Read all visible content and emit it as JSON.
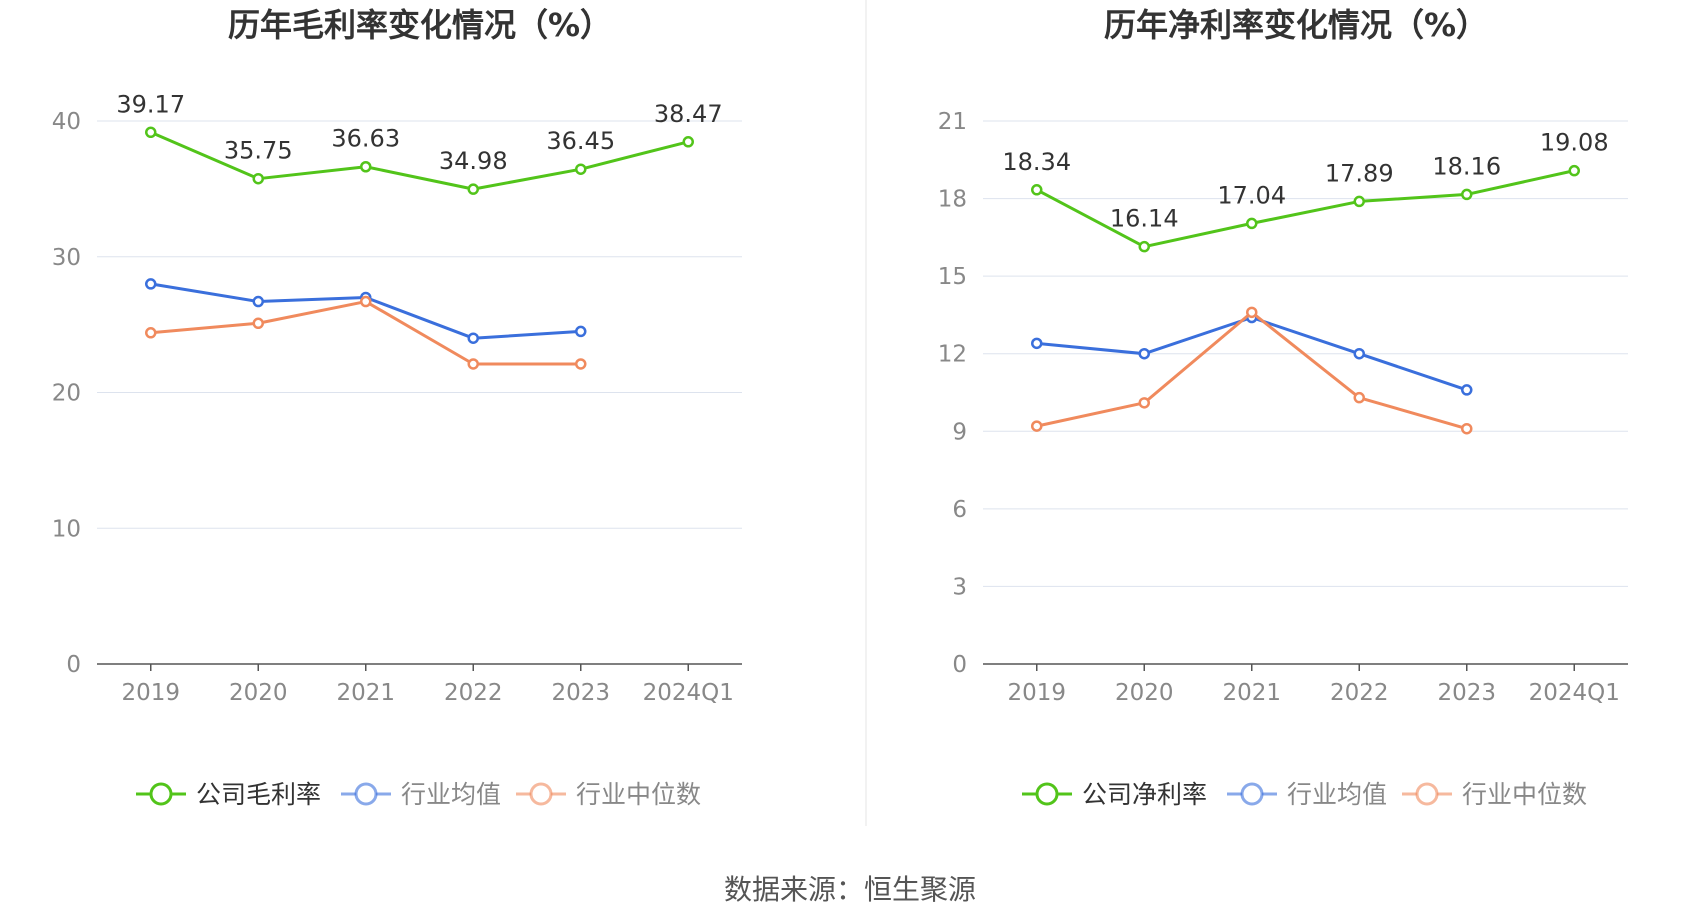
{
  "colors": {
    "company": "#52c41a",
    "industry_avg": "#3a6fdc",
    "industry_median": "#f08a5d",
    "grid": "#dde3ee",
    "axis": "#555555",
    "tick_text": "#888888",
    "divider": "#eeeeee"
  },
  "source_text": "数据来源：恒生聚源",
  "chart_data": [
    {
      "type": "line",
      "title": "历年毛利率变化情况（%）",
      "categories": [
        "2019",
        "2020",
        "2021",
        "2022",
        "2023",
        "2024Q1"
      ],
      "ylim": [
        0,
        40
      ],
      "yticks": [
        0,
        10,
        20,
        30,
        40
      ],
      "grid": true,
      "legend_position": "bottom",
      "series": [
        {
          "name": "公司毛利率",
          "key": "company",
          "values": [
            39.17,
            35.75,
            36.63,
            34.98,
            36.45,
            38.47
          ],
          "labels": [
            "39.17",
            "35.75",
            "36.63",
            "34.98",
            "36.45",
            "38.47"
          ]
        },
        {
          "name": "行业均值",
          "key": "industry_avg",
          "values": [
            28.0,
            26.7,
            27.0,
            24.0,
            24.5,
            null
          ]
        },
        {
          "name": "行业中位数",
          "key": "industry_median",
          "values": [
            24.4,
            25.1,
            26.7,
            22.1,
            22.1,
            null
          ]
        }
      ]
    },
    {
      "type": "line",
      "title": "历年净利率变化情况（%）",
      "categories": [
        "2019",
        "2020",
        "2021",
        "2022",
        "2023",
        "2024Q1"
      ],
      "ylim": [
        0,
        21
      ],
      "yticks": [
        0,
        3,
        6,
        9,
        12,
        15,
        18,
        21
      ],
      "grid": true,
      "legend_position": "bottom",
      "series": [
        {
          "name": "公司净利率",
          "key": "company",
          "values": [
            18.34,
            16.14,
            17.04,
            17.89,
            18.16,
            19.08
          ],
          "labels": [
            "18.34",
            "16.14",
            "17.04",
            "17.89",
            "18.16",
            "19.08"
          ]
        },
        {
          "name": "行业均值",
          "key": "industry_avg",
          "values": [
            12.4,
            12.0,
            13.4,
            12.0,
            10.6,
            null
          ]
        },
        {
          "name": "行业中位数",
          "key": "industry_median",
          "values": [
            9.2,
            10.1,
            13.6,
            10.3,
            9.1,
            null
          ]
        }
      ]
    }
  ]
}
